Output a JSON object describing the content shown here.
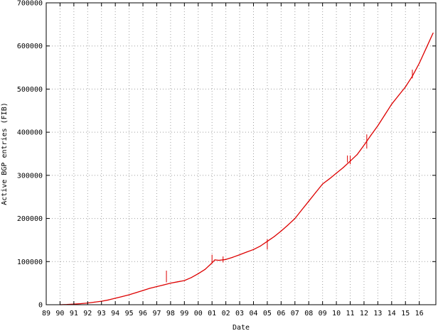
{
  "chart_data": {
    "type": "line",
    "title": "",
    "xlabel": "Date",
    "ylabel": "Active BGP entries (FIB)",
    "x_tick_labels": [
      "89",
      "90",
      "91",
      "92",
      "93",
      "94",
      "95",
      "96",
      "97",
      "98",
      "99",
      "00",
      "01",
      "02",
      "03",
      "04",
      "05",
      "06",
      "07",
      "08",
      "09",
      "10",
      "11",
      "12",
      "13",
      "14",
      "15",
      "16"
    ],
    "x_ticks": [
      1989,
      1990,
      1991,
      1992,
      1993,
      1994,
      1995,
      1996,
      1997,
      1998,
      1999,
      2000,
      2001,
      2002,
      2003,
      2004,
      2005,
      2006,
      2007,
      2008,
      2009,
      2010,
      2011,
      2012,
      2013,
      2014,
      2015,
      2016
    ],
    "xlim": [
      1989,
      2017.2
    ],
    "y_ticks": [
      0,
      100000,
      200000,
      300000,
      400000,
      500000,
      600000,
      700000
    ],
    "y_tick_labels": [
      "0",
      "100000",
      "200000",
      "300000",
      "400000",
      "500000",
      "600000",
      "700000"
    ],
    "ylim": [
      0,
      700000
    ],
    "grid": true,
    "legend": "none",
    "series": [
      {
        "color": "#dd0000",
        "x": [
          1990.0,
          1990.5,
          1991.0,
          1991.5,
          1992.0,
          1992.5,
          1993.0,
          1993.5,
          1994.0,
          1994.5,
          1995.0,
          1995.5,
          1996.0,
          1996.5,
          1997.0,
          1997.5,
          1998.0,
          1998.5,
          1999.0,
          1999.5,
          2000.0,
          2000.5,
          2001.0,
          2001.2,
          2001.5,
          2002.0,
          2002.5,
          2003.0,
          2003.5,
          2004.0,
          2004.5,
          2005.0,
          2005.5,
          2006.0,
          2006.5,
          2007.0,
          2007.5,
          2008.0,
          2008.5,
          2009.0,
          2009.5,
          2010.0,
          2010.5,
          2011.0,
          2011.5,
          2012.0,
          2012.5,
          2013.0,
          2013.5,
          2014.0,
          2014.5,
          2015.0,
          2015.5,
          2016.0,
          2016.5,
          2017.0
        ],
        "y": [
          0,
          500,
          1500,
          2500,
          4000,
          6000,
          8000,
          11000,
          15000,
          19000,
          23000,
          28000,
          33000,
          38000,
          42000,
          46000,
          50000,
          53000,
          56000,
          63000,
          72000,
          82000,
          97000,
          104000,
          103000,
          105000,
          110000,
          116000,
          122000,
          128000,
          136000,
          147000,
          158000,
          171000,
          185000,
          200000,
          220000,
          240000,
          260000,
          280000,
          292000,
          305000,
          318000,
          333000,
          348000,
          370000,
          393000,
          415000,
          440000,
          465000,
          485000,
          505000,
          530000,
          560000,
          595000,
          630000
        ]
      }
    ],
    "spikes": [
      {
        "x": 1997.7,
        "y_from": 52000,
        "y_to": 79000
      },
      {
        "x": 2001.0,
        "y_from": 96000,
        "y_to": 116000
      },
      {
        "x": 2001.8,
        "y_from": 98000,
        "y_to": 112000
      },
      {
        "x": 2005.0,
        "y_from": 128000,
        "y_to": 152000
      },
      {
        "x": 2010.8,
        "y_from": 330000,
        "y_to": 346000
      },
      {
        "x": 2011.0,
        "y_from": 326000,
        "y_to": 346000
      },
      {
        "x": 2012.2,
        "y_from": 362000,
        "y_to": 395000
      },
      {
        "x": 2015.5,
        "y_from": 525000,
        "y_to": 545000
      }
    ]
  }
}
